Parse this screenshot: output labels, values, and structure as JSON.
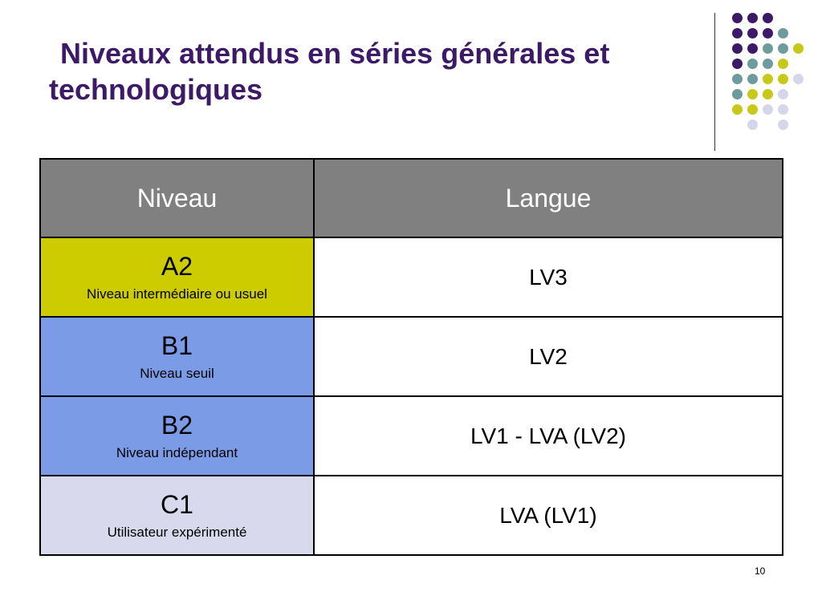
{
  "slide": {
    "title_line1": "Niveaux attendus en séries générales et",
    "title_line2": "technologiques",
    "page_number": "10"
  },
  "colors": {
    "title": "#3d1a68",
    "header_bg": "#808080",
    "a2_bg": "#cccc00",
    "b_bg": "#7b9be6",
    "c1_bg": "#d9d9ee",
    "dot_purple": "#3d1a68",
    "dot_teal": "#6e9c9c",
    "dot_yellow": "#c8c819",
    "dot_lavender": "#d6d6ea"
  },
  "table": {
    "headers": [
      "Niveau",
      "Langue"
    ],
    "rows": [
      {
        "code": "A2",
        "description": "Niveau intermédiaire ou usuel",
        "langue": "LV3"
      },
      {
        "code": "B1",
        "description": "Niveau seuil",
        "langue": "LV2"
      },
      {
        "code": "B2",
        "description": "Niveau indépendant",
        "langue": "LV1 - LVA (LV2)"
      },
      {
        "code": "C1",
        "description": "Utilisateur expérimenté",
        "langue": "LVA (LV1)"
      }
    ]
  }
}
